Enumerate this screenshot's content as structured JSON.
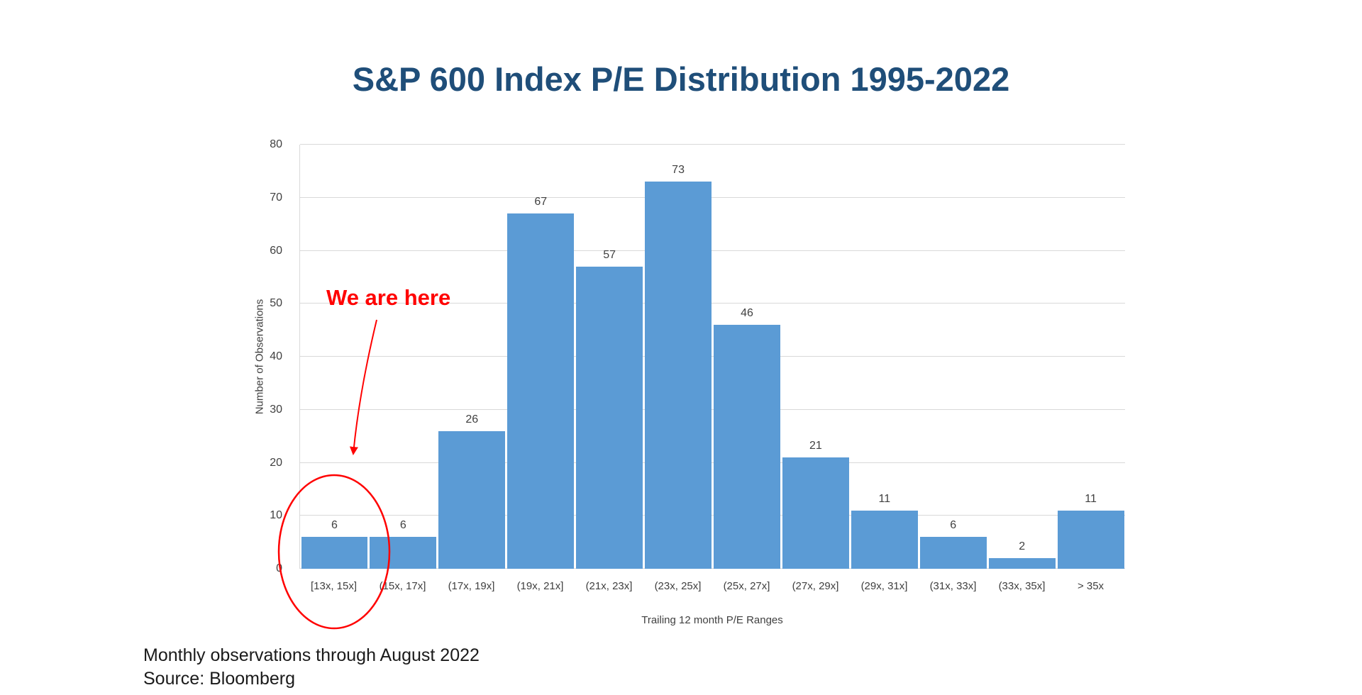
{
  "title": "S&P 600 Index P/E Distribution 1995-2022",
  "annotation": {
    "text": "We are here",
    "color": "#FF0000",
    "target_category": "[13x, 15x]"
  },
  "footer": {
    "line1": "Monthly observations through August 2022",
    "line2": "Source: Bloomberg"
  },
  "colors": {
    "title": "#1F4E79",
    "bar": "#5B9BD5",
    "gridline": "#D9D9D9",
    "axis_text": "#404040",
    "annotation": "#FF0000"
  },
  "chart_data": {
    "type": "bar",
    "title": "S&P 600 Index P/E Distribution 1995-2022",
    "categories": [
      "[13x, 15x]",
      "(15x, 17x]",
      "(17x, 19x]",
      "(19x, 21x]",
      "(21x, 23x]",
      "(23x, 25x]",
      "(25x, 27x]",
      "(27x, 29x]",
      "(29x, 31x]",
      "(31x, 33x]",
      "(33x, 35x]",
      "> 35x"
    ],
    "values": [
      6,
      6,
      26,
      67,
      57,
      73,
      46,
      21,
      11,
      6,
      2,
      11
    ],
    "xlabel": "Trailing 12 month P/E Ranges",
    "ylabel": "Number of Observations",
    "ylim": [
      0,
      80
    ],
    "y_ticks": [
      0,
      10,
      20,
      30,
      40,
      50,
      60,
      70,
      80
    ],
    "grid": true,
    "legend": false,
    "bar_color": "#5B9BD5",
    "annotation": {
      "text": "We are here",
      "target_category": "[13x, 15x]",
      "style": "red ellipse circling first bar, arrow from label to bar"
    }
  }
}
